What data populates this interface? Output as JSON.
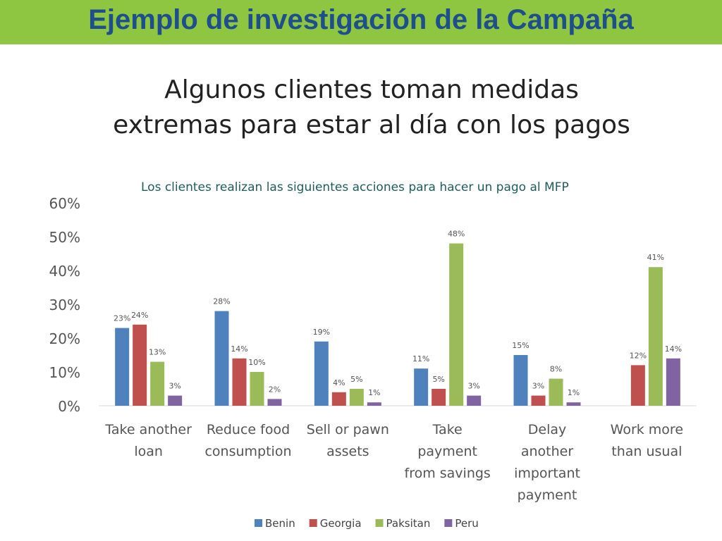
{
  "banner": {
    "title": "Ejemplo de investigación de la Campaña"
  },
  "headline": {
    "line1": "Algunos clientes toman medidas",
    "line2": "extremas para estar al día con los pagos"
  },
  "colors": {
    "banner": "#8ec641",
    "banner_text": "#1f4e8c",
    "Benin": "#4f81bd",
    "Georgia": "#c0504d",
    "Paksitan": "#9bbb59",
    "Peru": "#8064a2"
  },
  "chart_data": {
    "type": "bar",
    "title": "Los clientes realizan las siguientes acciones para hacer un pago al MFP",
    "xlabel": "",
    "ylabel": "",
    "ylim": [
      0,
      60
    ],
    "y_ticks": [
      "0%",
      "10%",
      "20%",
      "30%",
      "40%",
      "50%",
      "60%"
    ],
    "grid": false,
    "legend_position": "bottom",
    "categories": [
      [
        "Take another",
        "loan"
      ],
      [
        "Reduce food",
        "consumption"
      ],
      [
        "Sell or pawn",
        "assets"
      ],
      [
        "Take",
        "payment",
        "from savings"
      ],
      [
        "Delay",
        "another",
        "important",
        "payment"
      ],
      [
        "Work more",
        "than usual"
      ]
    ],
    "series": [
      {
        "name": "Benin",
        "values": [
          23,
          28,
          19,
          11,
          15,
          null
        ]
      },
      {
        "name": "Georgia",
        "values": [
          24,
          14,
          4,
          5,
          3,
          12
        ]
      },
      {
        "name": "Paksitan",
        "values": [
          13,
          10,
          5,
          48,
          8,
          41
        ]
      },
      {
        "name": "Peru",
        "values": [
          3,
          2,
          1,
          3,
          1,
          14
        ]
      }
    ]
  }
}
